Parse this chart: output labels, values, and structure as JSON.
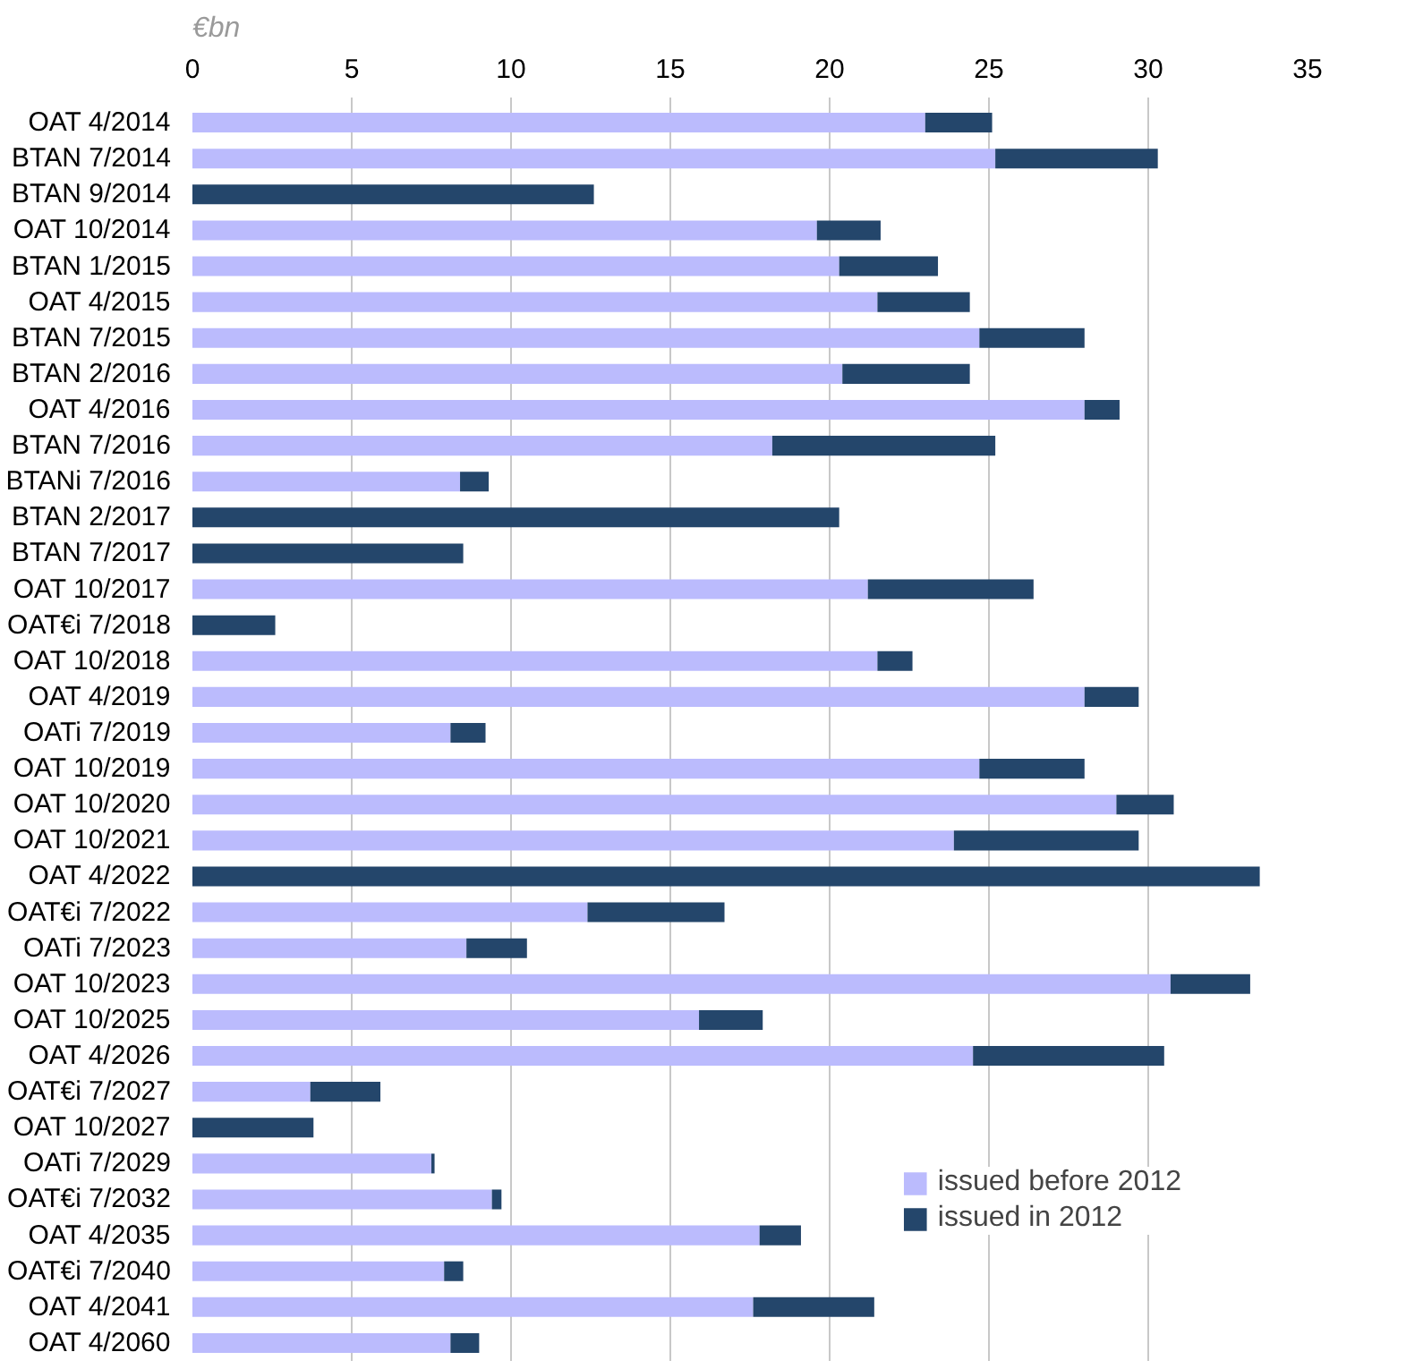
{
  "chart_data": {
    "type": "bar",
    "orientation": "horizontal",
    "stacked": true,
    "annotations": [
      "€bn"
    ],
    "categories": [
      "OAT 4/2014",
      "BTAN 7/2014",
      "BTAN 9/2014",
      "OAT 10/2014",
      "BTAN 1/2015",
      "OAT 4/2015",
      "BTAN 7/2015",
      "BTAN 2/2016",
      "OAT 4/2016",
      "BTAN 7/2016",
      "BTANi 7/2016",
      "BTAN 2/2017",
      "BTAN 7/2017",
      "OAT 10/2017",
      "OAT€i 7/2018",
      "OAT 10/2018",
      "OAT 4/2019",
      "OATi 7/2019",
      "OAT 10/2019",
      "OAT 10/2020",
      "OAT 10/2021",
      "OAT 4/2022",
      "OAT€i 7/2022",
      "OATi 7/2023",
      "OAT 10/2023",
      "OAT 10/2025",
      "OAT 4/2026",
      "OAT€i 7/2027",
      "OAT 10/2027",
      "OATi 7/2029",
      "OAT€i 7/2032",
      "OAT 4/2035",
      "OAT€i 7/2040",
      "OAT 4/2041",
      "OAT 4/2060"
    ],
    "series": [
      {
        "name": "issued before 2012",
        "color": "#bbbbfd",
        "values": [
          23.0,
          25.2,
          0,
          19.6,
          20.3,
          21.5,
          24.7,
          20.4,
          28.0,
          18.2,
          8.4,
          0,
          0,
          21.2,
          0,
          21.5,
          28.0,
          8.1,
          24.7,
          29.0,
          23.9,
          0,
          12.4,
          8.6,
          30.7,
          15.9,
          24.5,
          3.7,
          0,
          7.5,
          9.4,
          17.8,
          7.9,
          17.6,
          8.1
        ]
      },
      {
        "name": "issued in 2012",
        "color": "#24466b",
        "values": [
          2.1,
          5.1,
          12.6,
          2.0,
          3.1,
          2.9,
          3.3,
          4.0,
          1.1,
          7.0,
          0.9,
          20.3,
          8.5,
          5.2,
          2.6,
          1.1,
          1.7,
          1.1,
          3.3,
          1.8,
          5.8,
          33.5,
          4.3,
          1.9,
          2.5,
          2.0,
          6.0,
          2.2,
          3.8,
          0.1,
          0.3,
          1.3,
          0.6,
          3.8,
          0.9
        ]
      }
    ],
    "xlim": [
      0,
      35
    ],
    "xticks": [
      0,
      5,
      10,
      15,
      20,
      25,
      30,
      35
    ],
    "grid": "x",
    "legend": "bottom right"
  }
}
